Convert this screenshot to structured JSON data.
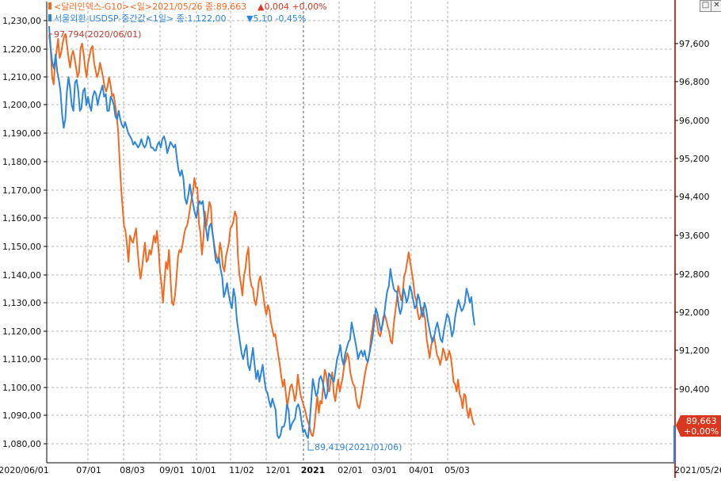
{
  "legend": {
    "series1": {
      "label": "<달러인덱스-G10><일>2021/05/26 종:89,663",
      "change": "▲0,004 +0,00%"
    },
    "series2": {
      "label": "서울외환-USDSP-중간값<1일> 종:1,122,00",
      "change": "▼5,10 -0,45%"
    }
  },
  "annotations": {
    "max_label": "97,794(2020/06/01)",
    "min_label": "89,419(2021/01/06)",
    "last_box_value": "89,663",
    "last_box_change": "+0,00%"
  },
  "window_buttons": {
    "maximize": "□",
    "close": "✕"
  },
  "colors": {
    "orange": "#f26a21",
    "blue": "#2e86d9",
    "right_axis": "#c0392b",
    "grid": "#9a9a9a"
  },
  "chart_data": {
    "type": "line",
    "x_ticks": [
      "2020/06/01",
      "07/01",
      "08/03",
      "09/01",
      "10/01",
      "11/02",
      "12/01",
      "2021",
      "02/01",
      "03/01",
      "04/01",
      "05/03",
      "2021/05/26"
    ],
    "left_axis": {
      "ticks": [
        "1,230,00",
        "1,220,00",
        "1,210,00",
        "1,200,00",
        "1,190,00",
        "1,180,00",
        "1,170,00",
        "1,160,00",
        "1,150,00",
        "1,140,00",
        "1,130,00",
        "1,120,00",
        "1,110,00",
        "1,100,00",
        "1,090,00",
        "1,080,00"
      ],
      "range": [
        1076,
        1232
      ]
    },
    "right_axis": {
      "ticks": [
        "97,600",
        "96,800",
        "96,000",
        "95,200",
        "94,400",
        "93,600",
        "92,800",
        "92,000",
        "91,200",
        "90,400"
      ],
      "range": [
        89.12,
        98.08
      ]
    },
    "series": [
      {
        "name": "달러인덱스-G10",
        "axis": "right",
        "values": [
          97.79,
          97.5,
          96.9,
          96.75,
          97.2,
          97.45,
          97.7,
          97.3,
          97.4,
          97.6,
          97.75,
          97.8,
          97.55,
          97.3,
          97.1,
          97.35,
          97.45,
          97.3,
          97.1,
          96.9,
          97.0,
          97.5,
          97.6,
          97.4,
          97.1,
          96.9,
          97.2,
          97.35,
          97.5,
          97.55,
          97.2,
          97.05,
          96.9,
          97.0,
          97.2,
          97.05,
          96.9,
          96.7,
          96.6,
          96.7,
          96.9,
          96.75,
          96.5,
          96.55,
          96.35,
          96.1,
          95.8,
          95.2,
          94.6,
          94.2,
          93.8,
          93.7,
          93.4,
          93.05,
          93.6,
          93.5,
          93.45,
          93.6,
          93.75,
          93.3,
          92.95,
          92.7,
          92.9,
          93.2,
          93.45,
          93.05,
          93.1,
          93.3,
          93.2,
          93.4,
          93.6,
          93.45,
          93.7,
          93.35,
          92.85,
          92.6,
          92.2,
          92.65,
          93.05,
          92.9,
          93.3,
          92.7,
          92.2,
          92.15,
          92.35,
          92.7,
          93.15,
          93.3,
          93.25,
          93.4,
          93.6,
          93.75,
          93.8,
          93.95,
          94.15,
          94.35,
          94.5,
          94.8,
          94.6,
          94.6,
          93.85,
          93.65,
          93.2,
          93.55,
          94.1,
          93.8,
          94.05,
          94.3,
          94.2,
          93.65,
          93.45,
          93.25,
          93.15,
          93.05,
          93.45,
          93.3,
          92.95,
          92.85,
          93.15,
          93.3,
          93.45,
          93.75,
          93.8,
          93.9,
          94.1,
          94.0,
          93.2,
          92.8,
          92.6,
          92.35,
          92.75,
          92.9,
          93.2,
          93.35,
          92.75,
          92.55,
          92.5,
          92.25,
          92.15,
          92.35,
          92.65,
          92.75,
          92.55,
          92.35,
          92.1,
          91.95,
          92.15,
          92.05,
          91.8,
          91.65,
          91.5,
          91.55,
          91.3,
          91.1,
          90.9,
          90.65,
          90.45,
          90.6,
          90.3,
          90.05,
          90.25,
          90.45,
          90.5,
          90.35,
          90.15,
          90.3,
          90.7,
          90.45,
          90.25,
          90.15,
          90.05,
          89.95,
          89.8,
          89.7,
          89.6,
          89.45,
          89.42,
          89.6,
          89.95,
          90.25,
          89.9,
          90.15,
          90.1,
          90.5,
          90.8,
          90.7,
          90.4,
          90.35,
          90.6,
          90.75,
          90.3,
          90.15,
          90.4,
          90.6,
          90.35,
          90.5,
          90.65,
          90.9,
          91.0,
          91.15,
          91.05,
          90.75,
          90.6,
          90.5,
          90.45,
          90.2,
          90.05,
          90.0,
          90.15,
          90.35,
          90.55,
          90.75,
          90.9,
          91.0,
          91.2,
          91.5,
          91.7,
          91.95,
          91.95,
          91.75,
          91.55,
          91.5,
          91.65,
          91.9,
          91.95,
          91.85,
          91.7,
          91.6,
          91.4,
          91.35,
          91.75,
          92.0,
          92.25,
          92.55,
          92.4,
          92.25,
          92.4,
          92.75,
          92.85,
          93.05,
          93.25,
          93.05,
          92.85,
          92.65,
          92.35,
          92.25,
          92.0,
          91.85,
          91.9,
          92.1,
          92.0,
          91.85,
          91.45,
          91.25,
          91.05,
          91.3,
          91.45,
          91.5,
          91.3,
          91.1,
          91.05,
          90.9,
          91.05,
          91.25,
          91.15,
          91.0,
          91.05,
          91.2,
          91.1,
          90.85,
          90.55,
          90.5,
          90.35,
          90.6,
          90.3,
          90.2,
          90.0,
          90.3,
          90.25,
          89.95,
          89.8,
          90.0,
          89.85,
          89.7,
          89.65
        ]
      },
      {
        "name": "서울외환-USDSP-중간값",
        "axis": "left",
        "values": [
          1228,
          1220,
          1215,
          1213,
          1218,
          1212,
          1209,
          1205,
          1197,
          1192,
          1195,
          1205,
          1210,
          1206,
          1200,
          1198,
          1208,
          1209,
          1205,
          1198,
          1199,
          1205,
          1206,
          1200,
          1203,
          1200,
          1198,
          1203,
          1205,
          1204,
          1200,
          1203,
          1205,
          1207,
          1203,
          1204,
          1198,
          1198,
          1203,
          1202,
          1200,
          1196,
          1195,
          1198,
          1195,
          1193,
          1192,
          1194,
          1192,
          1190,
          1189,
          1188,
          1186,
          1187,
          1186,
          1185,
          1186,
          1188,
          1186,
          1185,
          1186,
          1189,
          1188,
          1185,
          1185,
          1184,
          1184,
          1186,
          1187,
          1185,
          1188,
          1189,
          1187,
          1183,
          1185,
          1187,
          1186,
          1185,
          1186,
          1181,
          1177,
          1175,
          1177,
          1174,
          1167,
          1165,
          1168,
          1172,
          1168,
          1165,
          1162,
          1160,
          1164,
          1166,
          1165,
          1166,
          1160,
          1156,
          1152,
          1157,
          1158,
          1155,
          1150,
          1145,
          1144,
          1146,
          1142,
          1139,
          1132,
          1134,
          1137,
          1133,
          1130,
          1128,
          1135,
          1132,
          1124,
          1120,
          1116,
          1112,
          1110,
          1113,
          1115,
          1108,
          1106,
          1110,
          1114,
          1108,
          1103,
          1106,
          1102,
          1105,
          1108,
          1103,
          1099,
          1098,
          1095,
          1093,
          1096,
          1094,
          1092,
          1083,
          1082,
          1083,
          1086,
          1086,
          1088,
          1094,
          1092,
          1085,
          1087,
          1088,
          1089,
          1093,
          1094,
          1092,
          1088,
          1084,
          1085,
          1083,
          1082,
          1087,
          1095,
          1103,
          1100,
          1097,
          1098,
          1103,
          1104,
          1102,
          1099,
          1096,
          1098,
          1105,
          1104,
          1103,
          1102,
          1106,
          1110,
          1112,
          1115,
          1110,
          1108,
          1112,
          1114,
          1116,
          1117,
          1123,
          1120,
          1117,
          1114,
          1110,
          1112,
          1113,
          1111,
          1113,
          1110,
          1109,
          1112,
          1115,
          1118,
          1123,
          1128,
          1126,
          1123,
          1120,
          1122,
          1125,
          1130,
          1134,
          1136,
          1142,
          1138,
          1135,
          1134,
          1134,
          1129,
          1126,
          1128,
          1135,
          1133,
          1130,
          1132,
          1136,
          1134,
          1131,
          1128,
          1129,
          1133,
          1131,
          1127,
          1125,
          1130,
          1128,
          1124,
          1121,
          1118,
          1116,
          1118,
          1121,
          1123,
          1120,
          1117,
          1116,
          1120,
          1123,
          1126,
          1125,
          1122,
          1118,
          1120,
          1125,
          1128,
          1131,
          1129,
          1127,
          1128,
          1130,
          1135,
          1133,
          1130,
          1132,
          1126,
          1122
        ]
      }
    ],
    "annotations": [
      {
        "text": "97,794(2020/06/01)",
        "x": "2020/06/01",
        "y": 97.794,
        "axis": "right"
      },
      {
        "text": "89,419(2021/01/06)",
        "x": "2021/01/06",
        "y": 89.419,
        "axis": "right"
      }
    ],
    "last_value": {
      "value": "89,663",
      "change": "+0,00%"
    },
    "grid": true,
    "legend": "top-left"
  }
}
